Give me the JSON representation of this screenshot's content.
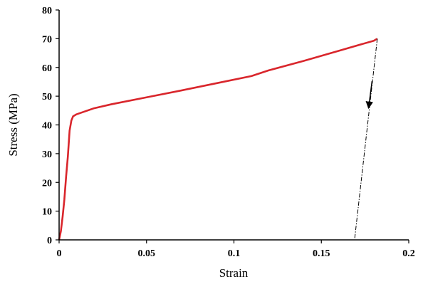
{
  "chart_data": {
    "type": "line",
    "xlabel": "Strain",
    "ylabel": "Stress (MPa)",
    "xlim": [
      0,
      0.2
    ],
    "ylim": [
      0,
      80
    ],
    "xticks": [
      0,
      0.05,
      0.1,
      0.15,
      0.2
    ],
    "xtick_labels": [
      "0",
      "0.05",
      "0.1",
      "0.15",
      "0.2"
    ],
    "yticks": [
      0,
      10,
      20,
      30,
      40,
      50,
      60,
      70,
      80
    ],
    "ytick_labels": [
      "0",
      "10",
      "20",
      "30",
      "40",
      "50",
      "60",
      "70",
      "80"
    ],
    "grid": false,
    "series": [
      {
        "style": "solid",
        "color": "#d9262c",
        "points": [
          [
            0,
            0
          ],
          [
            0.001,
            3
          ],
          [
            0.002,
            8
          ],
          [
            0.003,
            14
          ],
          [
            0.004,
            22
          ],
          [
            0.005,
            29
          ],
          [
            0.006,
            38
          ],
          [
            0.007,
            41.5
          ],
          [
            0.008,
            43
          ],
          [
            0.01,
            43.7
          ],
          [
            0.02,
            45.8
          ],
          [
            0.03,
            47.2
          ],
          [
            0.05,
            49.6
          ],
          [
            0.07,
            52
          ],
          [
            0.09,
            54.5
          ],
          [
            0.11,
            57
          ],
          [
            0.12,
            59
          ],
          [
            0.14,
            62.3
          ],
          [
            0.16,
            65.8
          ],
          [
            0.18,
            69.3
          ],
          [
            0.182,
            70
          ]
        ]
      },
      {
        "style": "dash-dot",
        "color": "#000000",
        "points": [
          [
            0.182,
            70
          ],
          [
            0.169,
            0
          ]
        ]
      }
    ],
    "arrow": {
      "color": "#000000",
      "from": [
        0.179,
        55.2
      ],
      "to": [
        0.177,
        45.8
      ]
    }
  }
}
